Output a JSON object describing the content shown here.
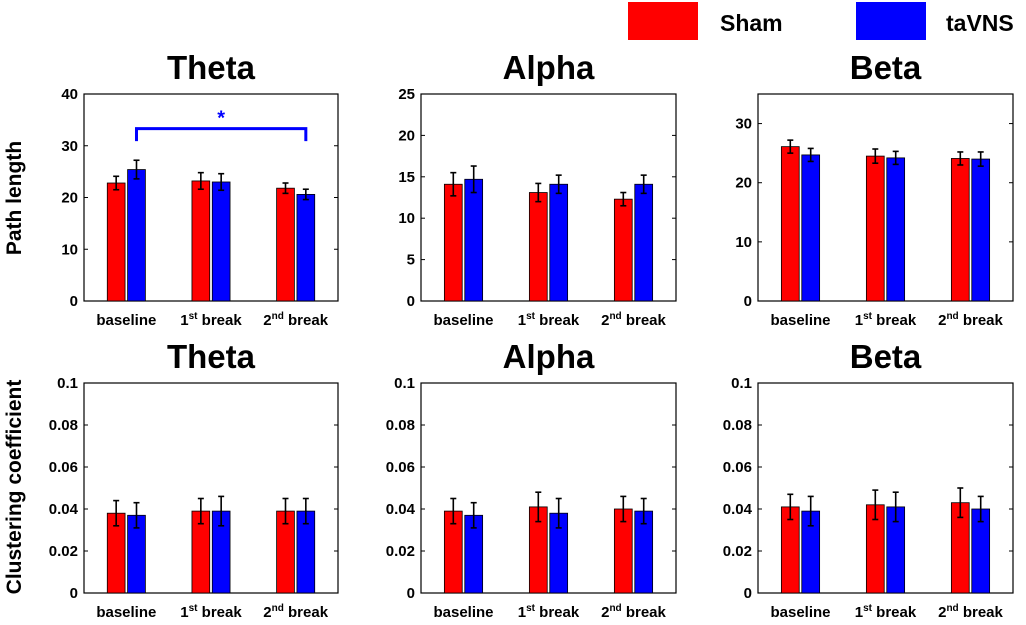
{
  "legend": {
    "items": [
      {
        "name": "Sham",
        "color": "#ff0000"
      },
      {
        "name": "taVNS",
        "color": "#0000ff"
      }
    ]
  },
  "row_labels": [
    "Path length",
    "Clustering coefficient"
  ],
  "tick_sup": {
    "first": "st",
    "second": "nd"
  },
  "chart_data": [
    {
      "type": "bar",
      "title": "Theta",
      "ylabel": "Path length",
      "categories": [
        "baseline",
        "1st break",
        "2nd break"
      ],
      "ylim": [
        0,
        40
      ],
      "yticks": [
        0,
        10,
        20,
        30,
        40
      ],
      "ytick_labels": [
        "0",
        "10",
        "20",
        "30",
        "40"
      ],
      "series": [
        {
          "name": "Sham",
          "values": [
            22.8,
            23.2,
            21.8
          ],
          "errors": [
            1.3,
            1.6,
            1.0
          ]
        },
        {
          "name": "taVNS",
          "values": [
            25.4,
            23.0,
            20.6
          ],
          "errors": [
            1.8,
            1.6,
            1.0
          ]
        }
      ],
      "annotation": {
        "text": "*",
        "from": "baseline",
        "to": "2nd break",
        "y": 33.3
      }
    },
    {
      "type": "bar",
      "title": "Alpha",
      "ylabel": "",
      "categories": [
        "baseline",
        "1st break",
        "2nd break"
      ],
      "ylim": [
        0,
        25
      ],
      "yticks": [
        0,
        5,
        10,
        15,
        20,
        25
      ],
      "ytick_labels": [
        "0",
        "5",
        "10",
        "15",
        "20",
        "25"
      ],
      "series": [
        {
          "name": "Sham",
          "values": [
            14.1,
            13.1,
            12.3
          ],
          "errors": [
            1.4,
            1.1,
            0.8
          ]
        },
        {
          "name": "taVNS",
          "values": [
            14.7,
            14.1,
            14.1
          ],
          "errors": [
            1.6,
            1.1,
            1.1
          ]
        }
      ]
    },
    {
      "type": "bar",
      "title": "Beta",
      "ylabel": "",
      "categories": [
        "baseline",
        "1st break",
        "2nd break"
      ],
      "ylim": [
        0,
        35
      ],
      "yticks": [
        0,
        10,
        20,
        30
      ],
      "ytick_labels": [
        "0",
        "10",
        "20",
        "30"
      ],
      "series": [
        {
          "name": "Sham",
          "values": [
            26.1,
            24.5,
            24.1
          ],
          "errors": [
            1.1,
            1.2,
            1.1
          ]
        },
        {
          "name": "taVNS",
          "values": [
            24.7,
            24.2,
            24.0
          ],
          "errors": [
            1.1,
            1.1,
            1.2
          ]
        }
      ]
    },
    {
      "type": "bar",
      "title": "Theta",
      "ylabel": "Clustering coefficient",
      "categories": [
        "baseline",
        "1st break",
        "2nd break"
      ],
      "ylim": [
        0,
        0.1
      ],
      "yticks": [
        0,
        0.02,
        0.04,
        0.06,
        0.08,
        0.1
      ],
      "ytick_labels": [
        "0",
        "0.02",
        "0.04",
        "0.06",
        "0.08",
        "0.1"
      ],
      "series": [
        {
          "name": "Sham",
          "values": [
            0.038,
            0.039,
            0.039
          ],
          "errors": [
            0.006,
            0.006,
            0.006
          ]
        },
        {
          "name": "taVNS",
          "values": [
            0.037,
            0.039,
            0.039
          ],
          "errors": [
            0.006,
            0.007,
            0.006
          ]
        }
      ]
    },
    {
      "type": "bar",
      "title": "Alpha",
      "ylabel": "",
      "categories": [
        "baseline",
        "1st break",
        "2nd break"
      ],
      "ylim": [
        0,
        0.1
      ],
      "yticks": [
        0,
        0.02,
        0.04,
        0.06,
        0.08,
        0.1
      ],
      "ytick_labels": [
        "0",
        "0.02",
        "0.04",
        "0.06",
        "0.08",
        "0.1"
      ],
      "series": [
        {
          "name": "Sham",
          "values": [
            0.039,
            0.041,
            0.04
          ],
          "errors": [
            0.006,
            0.007,
            0.006
          ]
        },
        {
          "name": "taVNS",
          "values": [
            0.037,
            0.038,
            0.039
          ],
          "errors": [
            0.006,
            0.007,
            0.006
          ]
        }
      ]
    },
    {
      "type": "bar",
      "title": "Beta",
      "ylabel": "",
      "categories": [
        "baseline",
        "1st break",
        "2nd break"
      ],
      "ylim": [
        0,
        0.1
      ],
      "yticks": [
        0,
        0.02,
        0.04,
        0.06,
        0.08,
        0.1
      ],
      "ytick_labels": [
        "0",
        "0.02",
        "0.04",
        "0.06",
        "0.08",
        "0.1"
      ],
      "series": [
        {
          "name": "Sham",
          "values": [
            0.041,
            0.042,
            0.043
          ],
          "errors": [
            0.006,
            0.007,
            0.007
          ]
        },
        {
          "name": "taVNS",
          "values": [
            0.039,
            0.041,
            0.04
          ],
          "errors": [
            0.007,
            0.007,
            0.006
          ]
        }
      ]
    }
  ]
}
